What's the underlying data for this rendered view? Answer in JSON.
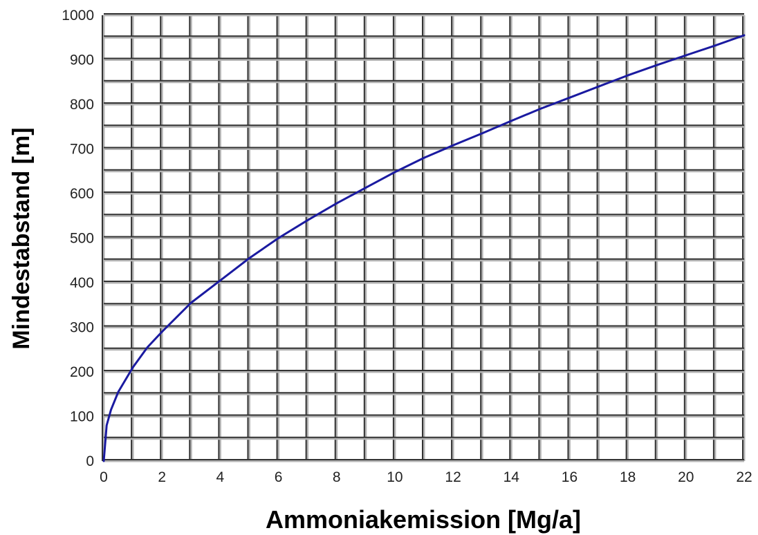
{
  "chart_data": {
    "type": "line",
    "title": "",
    "xlabel": "Ammoniakemission [Mg/a]",
    "ylabel": "Mindestabstand [m]",
    "xlim": [
      0,
      22
    ],
    "ylim": [
      0,
      1000
    ],
    "x_ticks": [
      0,
      2,
      4,
      6,
      8,
      10,
      12,
      14,
      16,
      18,
      20,
      22
    ],
    "y_ticks": [
      0,
      100,
      200,
      300,
      400,
      500,
      600,
      700,
      800,
      900,
      1000
    ],
    "grid": true,
    "legend": "none",
    "series": [
      {
        "color": "#1a1aa0",
        "x": [
          0,
          0.1,
          0.25,
          0.5,
          1,
          1.5,
          2,
          3,
          4,
          5,
          6,
          7,
          8,
          9,
          10,
          11,
          12,
          13,
          14,
          15,
          16,
          17,
          18,
          19,
          20,
          21,
          22
        ],
        "y": [
          0,
          80,
          115,
          155,
          210,
          255,
          290,
          355,
          405,
          455,
          500,
          540,
          578,
          613,
          648,
          680,
          708,
          735,
          763,
          790,
          815,
          840,
          865,
          888,
          910,
          932,
          955
        ]
      }
    ]
  }
}
